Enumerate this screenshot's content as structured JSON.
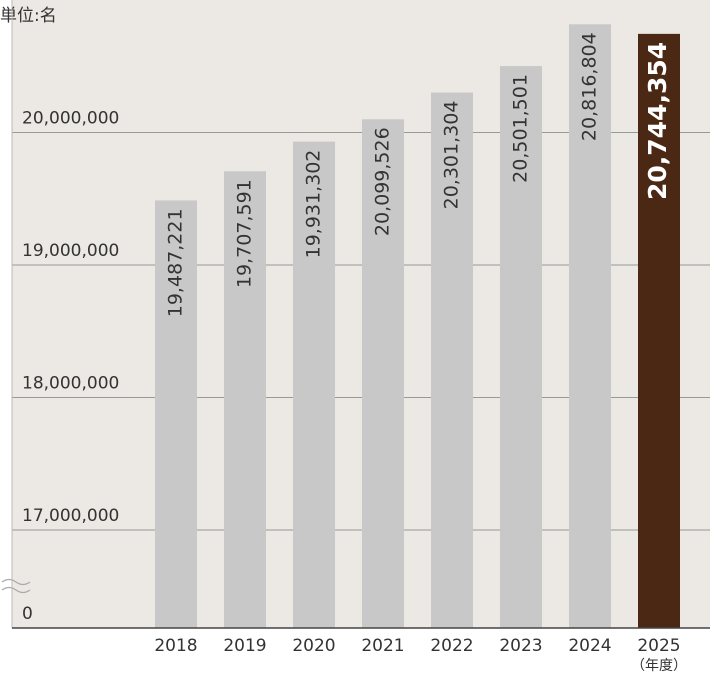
{
  "chart_data": {
    "type": "bar",
    "title": "単位:名",
    "x_unit": "（年度）",
    "categories": [
      "2018",
      "2019",
      "2020",
      "2021",
      "2022",
      "2023",
      "2024",
      "2025"
    ],
    "values": [
      19487221,
      19707591,
      19931302,
      20099526,
      20301304,
      20501501,
      20816804,
      20744354
    ],
    "value_labels": [
      "19,487,221",
      "19,707,591",
      "19,931,302",
      "20,099,526",
      "20,301,304",
      "20,501,501",
      "20,816,804",
      "20,744,354"
    ],
    "colors": [
      "#c8c8c8",
      "#c8c8c8",
      "#c8c8c8",
      "#c8c8c8",
      "#c8c8c8",
      "#c8c8c8",
      "#c8c8c8",
      "#4a2814"
    ],
    "label_colors": [
      "#333333",
      "#333333",
      "#333333",
      "#333333",
      "#333333",
      "#333333",
      "#333333",
      "#ffffff"
    ],
    "ylim": [
      0,
      21000000
    ],
    "yticks": [
      0,
      {
        "value": 17000000,
        "label": "17,000,000"
      },
      {
        "value": 18000000,
        "label": "18,000,000"
      },
      {
        "value": 19000000,
        "label": "19,000,000"
      },
      {
        "value": 20000000,
        "label": "20,000,000"
      }
    ],
    "axis_break": true,
    "grid": true
  }
}
